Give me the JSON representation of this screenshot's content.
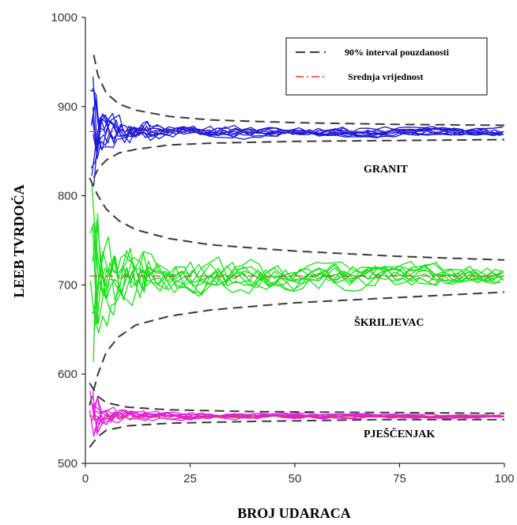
{
  "chart_data": {
    "type": "line",
    "xlabel": "BROJ UDARACA",
    "ylabel": "LEEB TVRDOĆA",
    "xlim": [
      0,
      100
    ],
    "ylim": [
      500,
      1000
    ],
    "xticks": [
      0,
      25,
      50,
      75,
      100
    ],
    "xtick_labels": [
      "0",
      "25",
      "50",
      "75",
      "100"
    ],
    "yticks": [
      500,
      600,
      700,
      800,
      900,
      1000
    ],
    "ytick_labels": [
      "500",
      "600",
      "700",
      "800",
      "900",
      "1000"
    ],
    "grid": false,
    "legend_position": "top-right",
    "legend": [
      {
        "label": "90% interval pouzdanosti",
        "style": "dashed",
        "color": "#3a3a3a"
      },
      {
        "label": "Srednja vrijednost",
        "style": "dashdot",
        "color": "#e0402a"
      }
    ],
    "annotations": [
      {
        "text": "GRANIT",
        "x": 73,
        "y": 815
      },
      {
        "text": "ŠKRILJEVAC",
        "x": 71,
        "y": 653
      },
      {
        "text": "PJEŠČENJAK",
        "x": 73,
        "y": 532
      }
    ],
    "groups": [
      {
        "name": "GRANIT",
        "color": "#1a1adc",
        "mean": 872,
        "ci_upper": [
          [
            2,
            958
          ],
          [
            3,
            935
          ],
          [
            5,
            915
          ],
          [
            8,
            903
          ],
          [
            12,
            896
          ],
          [
            20,
            889
          ],
          [
            30,
            885
          ],
          [
            50,
            882
          ],
          [
            75,
            880
          ],
          [
            100,
            879
          ]
        ],
        "ci_lower": [
          [
            2,
            820
          ],
          [
            3,
            830
          ],
          [
            5,
            840
          ],
          [
            8,
            848
          ],
          [
            12,
            852
          ],
          [
            20,
            857
          ],
          [
            30,
            859
          ],
          [
            50,
            861
          ],
          [
            75,
            862
          ],
          [
            100,
            863
          ]
        ],
        "runs_count": 10
      },
      {
        "name": "ŠKRILJEVAC",
        "color": "#19e019",
        "mean": 710,
        "ci_upper": [
          [
            1,
            820
          ],
          [
            3,
            800
          ],
          [
            5,
            785
          ],
          [
            8,
            772
          ],
          [
            12,
            762
          ],
          [
            20,
            752
          ],
          [
            30,
            745
          ],
          [
            50,
            738
          ],
          [
            75,
            732
          ],
          [
            100,
            728
          ]
        ],
        "ci_lower": [
          [
            1,
            565
          ],
          [
            3,
            600
          ],
          [
            5,
            625
          ],
          [
            8,
            642
          ],
          [
            12,
            655
          ],
          [
            20,
            665
          ],
          [
            30,
            672
          ],
          [
            50,
            680
          ],
          [
            75,
            686
          ],
          [
            100,
            692
          ]
        ],
        "runs_count": 10
      },
      {
        "name": "PJEŠČENJAK",
        "color": "#e020e0",
        "mean": 553,
        "ci_upper": [
          [
            1,
            590
          ],
          [
            3,
            575
          ],
          [
            5,
            568
          ],
          [
            10,
            563
          ],
          [
            20,
            560
          ],
          [
            40,
            558
          ],
          [
            70,
            557
          ],
          [
            100,
            556
          ]
        ],
        "ci_lower": [
          [
            1,
            518
          ],
          [
            3,
            530
          ],
          [
            5,
            537
          ],
          [
            10,
            542
          ],
          [
            20,
            545
          ],
          [
            40,
            547
          ],
          [
            70,
            549
          ],
          [
            100,
            549
          ]
        ],
        "runs_count": 10
      }
    ]
  }
}
